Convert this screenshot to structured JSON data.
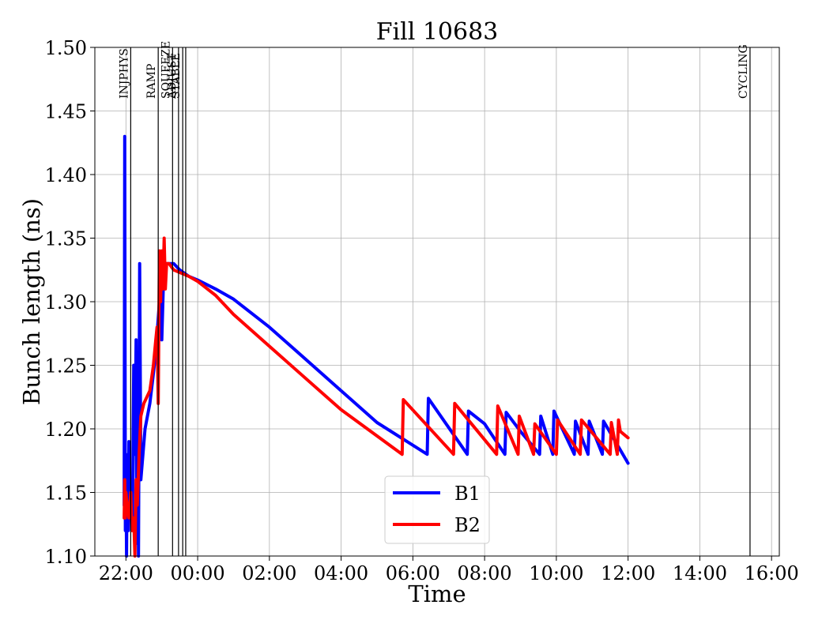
{
  "chart_data": {
    "type": "line",
    "title": "Fill 10683",
    "xlabel": "Time",
    "ylabel": "Bunch length (ns)",
    "xlim": [
      "21:08",
      "16:13"
    ],
    "ylim": [
      1.1,
      1.5
    ],
    "x_ticks": [
      "22:00",
      "00:00",
      "02:00",
      "04:00",
      "06:00",
      "08:00",
      "10:00",
      "12:00",
      "14:00",
      "16:00"
    ],
    "x_tick_labels": [
      "22:00",
      "00:00",
      "02:00",
      "04:00",
      "06:00",
      "08:00",
      "10:00",
      "12:00",
      "14:00",
      "16:00"
    ],
    "y_ticks": [
      1.1,
      1.15,
      1.2,
      1.25,
      1.3,
      1.35,
      1.4,
      1.45,
      1.5
    ],
    "y_tick_labels": [
      "1.10",
      "1.15",
      "1.20",
      "1.25",
      "1.30",
      "1.35",
      "1.40",
      "1.45",
      "1.50"
    ],
    "grid": true,
    "legend_position": "lower-center",
    "colors": {
      "B1": "#0000ff",
      "B2": "#ff0000"
    },
    "beam_modes": [
      {
        "label": "INJPHYS",
        "time": "22:08"
      },
      {
        "label": "RAMP",
        "time": "22:54"
      },
      {
        "label": "SQUEEZE",
        "time": "23:18"
      },
      {
        "label": "ADJUST",
        "time": "23:28"
      },
      {
        "label": "STABLE",
        "time": "23:35"
      },
      {
        "label": "",
        "time": "23:40"
      },
      {
        "label": "CYCLING",
        "time": "15:24"
      }
    ],
    "series": [
      {
        "name": "B1",
        "points": [
          [
            "21:57",
            1.14
          ],
          [
            "21:58",
            1.43
          ],
          [
            "21:59",
            1.12
          ],
          [
            "22:00",
            1.18
          ],
          [
            "22:01",
            1.1
          ],
          [
            "22:02",
            1.16
          ],
          [
            "22:04",
            1.12
          ],
          [
            "22:05",
            1.19
          ],
          [
            "22:07",
            1.13
          ],
          [
            "22:09",
            1.15
          ],
          [
            "22:11",
            1.13
          ],
          [
            "22:13",
            1.25
          ],
          [
            "22:15",
            1.18
          ],
          [
            "22:17",
            1.27
          ],
          [
            "22:18",
            1.11
          ],
          [
            "22:20",
            1.26
          ],
          [
            "22:21",
            1.1
          ],
          [
            "22:23",
            1.33
          ],
          [
            "22:25",
            1.16
          ],
          [
            "22:32",
            1.2
          ],
          [
            "22:40",
            1.22
          ],
          [
            "22:45",
            1.24
          ],
          [
            "22:50",
            1.26
          ],
          [
            "22:53",
            1.28
          ],
          [
            "22:56",
            1.3
          ],
          [
            "22:58",
            1.33
          ],
          [
            "23:00",
            1.27
          ],
          [
            "23:03",
            1.32
          ],
          [
            "23:07",
            1.33
          ],
          [
            "23:10",
            1.33
          ],
          [
            "23:14",
            1.33
          ],
          [
            "23:20",
            1.33
          ],
          [
            "23:30",
            1.325
          ],
          [
            "23:45",
            1.32
          ],
          [
            "00:00",
            1.317
          ],
          [
            "00:30",
            1.31
          ],
          [
            "01:00",
            1.302
          ],
          [
            "02:00",
            1.28
          ],
          [
            "04:00",
            1.23
          ],
          [
            "05:00",
            1.205
          ],
          [
            "06:24",
            1.18
          ],
          [
            "06:26",
            1.224
          ],
          [
            "07:31",
            1.18
          ],
          [
            "07:33",
            1.214
          ],
          [
            "08:00",
            1.204
          ],
          [
            "08:34",
            1.18
          ],
          [
            "08:36",
            1.213
          ],
          [
            "09:00",
            1.198
          ],
          [
            "09:32",
            1.18
          ],
          [
            "09:34",
            1.21
          ],
          [
            "09:54",
            1.18
          ],
          [
            "09:56",
            1.214
          ],
          [
            "10:30",
            1.18
          ],
          [
            "10:32",
            1.206
          ],
          [
            "10:53",
            1.18
          ],
          [
            "10:55",
            1.206
          ],
          [
            "11:17",
            1.18
          ],
          [
            "11:19",
            1.206
          ],
          [
            "12:00",
            1.173
          ]
        ]
      },
      {
        "name": "B2",
        "points": [
          [
            "21:57",
            1.13
          ],
          [
            "21:58",
            1.16
          ],
          [
            "21:59",
            1.13
          ],
          [
            "22:00",
            1.15
          ],
          [
            "22:02",
            1.14
          ],
          [
            "22:05",
            1.13
          ],
          [
            "22:08",
            1.15
          ],
          [
            "22:10",
            1.12
          ],
          [
            "22:13",
            1.13
          ],
          [
            "22:15",
            1.1
          ],
          [
            "22:17",
            1.16
          ],
          [
            "22:19",
            1.14
          ],
          [
            "22:22",
            1.18
          ],
          [
            "22:25",
            1.21
          ],
          [
            "22:30",
            1.22
          ],
          [
            "22:40",
            1.23
          ],
          [
            "22:46",
            1.25
          ],
          [
            "22:50",
            1.27
          ],
          [
            "22:52",
            1.28
          ],
          [
            "22:54",
            1.22
          ],
          [
            "22:56",
            1.34
          ],
          [
            "22:58",
            1.3
          ],
          [
            "23:00",
            1.34
          ],
          [
            "23:02",
            1.31
          ],
          [
            "23:04",
            1.35
          ],
          [
            "23:06",
            1.31
          ],
          [
            "23:08",
            1.33
          ],
          [
            "23:12",
            1.33
          ],
          [
            "23:20",
            1.325
          ],
          [
            "23:45",
            1.32
          ],
          [
            "00:00",
            1.316
          ],
          [
            "00:30",
            1.305
          ],
          [
            "01:00",
            1.29
          ],
          [
            "02:00",
            1.265
          ],
          [
            "04:00",
            1.215
          ],
          [
            "05:42",
            1.18
          ],
          [
            "05:44",
            1.223
          ],
          [
            "07:08",
            1.18
          ],
          [
            "07:10",
            1.22
          ],
          [
            "08:20",
            1.18
          ],
          [
            "08:22",
            1.218
          ],
          [
            "08:56",
            1.18
          ],
          [
            "08:58",
            1.21
          ],
          [
            "09:22",
            1.18
          ],
          [
            "09:24",
            1.204
          ],
          [
            "10:00",
            1.18
          ],
          [
            "10:02",
            1.207
          ],
          [
            "10:40",
            1.18
          ],
          [
            "10:42",
            1.207
          ],
          [
            "11:30",
            1.18
          ],
          [
            "11:32",
            1.205
          ],
          [
            "11:42",
            1.18
          ],
          [
            "11:44",
            1.207
          ],
          [
            "11:47",
            1.198
          ],
          [
            "12:00",
            1.193
          ]
        ]
      }
    ]
  }
}
